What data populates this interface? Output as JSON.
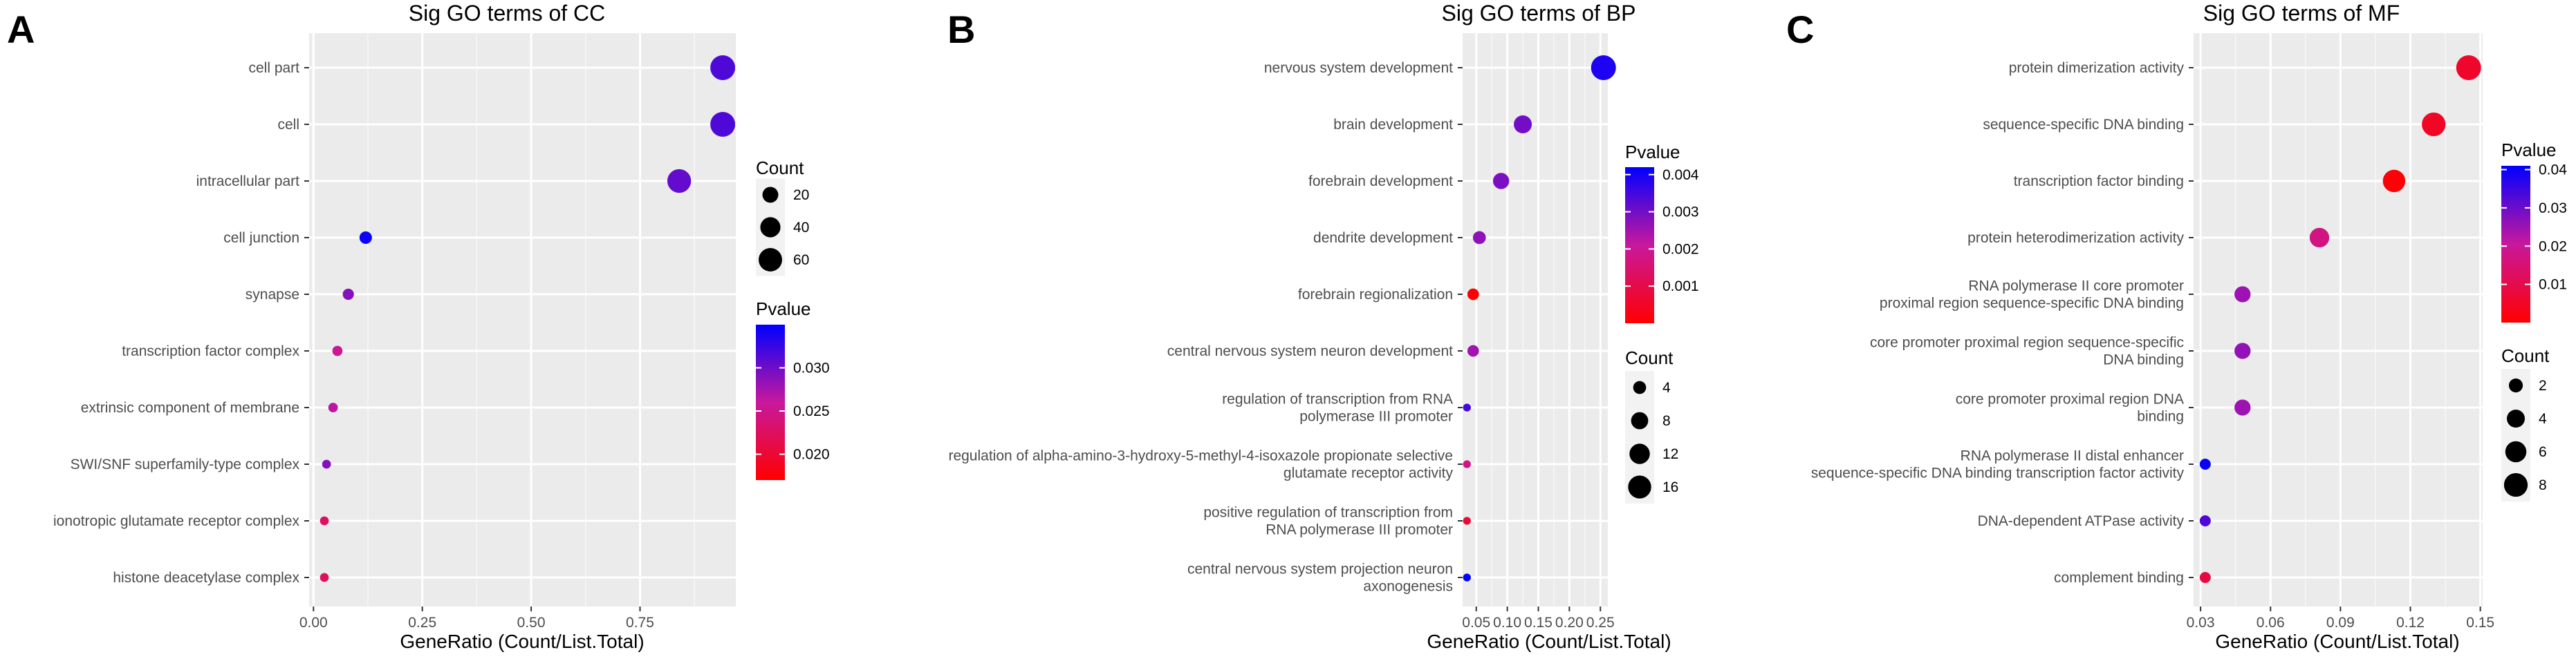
{
  "chart_data": [
    {
      "panel": "A",
      "type": "scatter",
      "title": "Sig GO terms of CC",
      "xlabel": "GeneRatio (Count/List.Total)",
      "xlim": [
        -0.01,
        0.97
      ],
      "xticks": [
        0.0,
        0.25,
        0.5,
        0.75
      ],
      "xtick_labels": [
        "0.00",
        "0.25",
        "0.50",
        "0.75"
      ],
      "categories": [
        "cell part",
        "cell",
        "intracellular part",
        "cell junction",
        "synapse",
        "transcription factor complex",
        "extrinsic component of membrane",
        "SWI/SNF superfamily-type complex",
        "ionotropic glutamate receptor complex",
        "histone deacetylase complex"
      ],
      "gene_ratio": [
        0.94,
        0.94,
        0.84,
        0.12,
        0.08,
        0.055,
        0.045,
        0.03,
        0.025,
        0.025
      ],
      "count": [
        70,
        70,
        62,
        9,
        6,
        4,
        3,
        2,
        2,
        2
      ],
      "pvalue": [
        0.0315,
        0.0315,
        0.0305,
        0.0345,
        0.029,
        0.0255,
        0.0265,
        0.029,
        0.0225,
        0.0225
      ],
      "count_legend": {
        "title": "Count",
        "values": [
          20,
          40,
          60
        ],
        "labels": [
          "20",
          "40",
          "60"
        ]
      },
      "pvalue_legend": {
        "title": "Pvalue",
        "range": [
          0.017,
          0.035
        ],
        "ticks": [
          0.03,
          0.025,
          0.02
        ],
        "labels": [
          "0.030",
          "0.025",
          "0.020"
        ]
      }
    },
    {
      "panel": "B",
      "type": "scatter",
      "title": "Sig GO terms of BP",
      "xlabel": "GeneRatio (Count/List.Total)",
      "xlim": [
        0.028,
        0.262
      ],
      "xticks": [
        0.05,
        0.1,
        0.15,
        0.2,
        0.25
      ],
      "xtick_labels": [
        "0.05",
        "0.10",
        "0.15",
        "0.20",
        "0.25"
      ],
      "categories": [
        [
          "nervous system development"
        ],
        [
          "brain development"
        ],
        [
          "forebrain development"
        ],
        [
          "dendrite development"
        ],
        [
          "forebrain regionalization"
        ],
        [
          "central nervous system neuron development"
        ],
        [
          "regulation of transcription from RNA",
          "polymerase III promoter"
        ],
        [
          "regulation of alpha-amino-3-hydroxy-5-methyl-4-isoxazole propionate selective",
          "glutamate receptor activity"
        ],
        [
          "positive regulation of transcription from",
          "RNA polymerase III promoter"
        ],
        [
          "central nervous system projection neuron",
          "axonogenesis"
        ]
      ],
      "gene_ratio": [
        0.255,
        0.125,
        0.09,
        0.055,
        0.045,
        0.045,
        0.035,
        0.035,
        0.035,
        0.035
      ],
      "count": [
        19,
        9,
        7,
        4,
        3,
        3,
        1,
        1,
        1,
        1
      ],
      "pvalue": [
        0.0039,
        0.003,
        0.0029,
        0.0027,
        5e-05,
        0.0025,
        0.0035,
        0.0018,
        0.0007,
        0.0042
      ],
      "count_legend": {
        "title": "Count",
        "values": [
          4,
          8,
          12,
          16
        ],
        "labels": [
          "4",
          "8",
          "12",
          "16"
        ]
      },
      "pvalue_legend": {
        "title": "Pvalue",
        "range": [
          0.0,
          0.0042
        ],
        "ticks": [
          0.004,
          0.003,
          0.002,
          0.001
        ],
        "labels": [
          "0.004",
          "0.003",
          "0.002",
          "0.001"
        ]
      }
    },
    {
      "panel": "C",
      "type": "scatter",
      "title": "Sig GO terms of MF",
      "xlabel": "GeneRatio (Count/List.Total)",
      "xlim": [
        0.027,
        0.151
      ],
      "xticks": [
        0.03,
        0.06,
        0.09,
        0.12,
        0.15
      ],
      "xtick_labels": [
        "0.03",
        "0.06",
        "0.09",
        "0.12",
        "0.15"
      ],
      "categories": [
        [
          "protein dimerization activity"
        ],
        [
          "sequence-specific DNA binding"
        ],
        [
          "transcription factor binding"
        ],
        [
          "protein heterodimerization activity"
        ],
        [
          "RNA polymerase II core promoter",
          "proximal region sequence-specific DNA binding"
        ],
        [
          "core promoter proximal region sequence-specific",
          "DNA binding"
        ],
        [
          "core promoter proximal region DNA",
          "binding"
        ],
        [
          "RNA polymerase II distal enhancer",
          "sequence-specific DNA binding transcription factor activity"
        ],
        [
          "DNA-dependent ATPase activity"
        ],
        [
          "complement binding"
        ]
      ],
      "gene_ratio": [
        0.145,
        0.13,
        0.113,
        0.081,
        0.048,
        0.048,
        0.048,
        0.032,
        0.032,
        0.032
      ],
      "count": [
        9,
        8,
        7,
        5,
        3,
        3,
        3,
        1,
        1,
        1
      ],
      "pvalue": [
        0.0055,
        0.0048,
        0.0008,
        0.017,
        0.025,
        0.026,
        0.025,
        0.04,
        0.033,
        0.008
      ],
      "count_legend": {
        "title": "Count",
        "values": [
          2,
          4,
          6,
          8
        ],
        "labels": [
          "2",
          "4",
          "6",
          "8"
        ]
      },
      "pvalue_legend": {
        "title": "Pvalue",
        "range": [
          0.0,
          0.041
        ],
        "ticks": [
          0.04,
          0.03,
          0.02,
          0.01
        ],
        "labels": [
          "0.04",
          "0.03",
          "0.02",
          "0.01"
        ]
      }
    }
  ]
}
